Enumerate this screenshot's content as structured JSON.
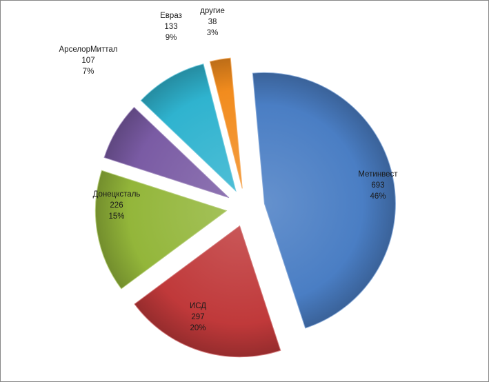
{
  "chart_data": {
    "type": "pie",
    "title": "",
    "exploded": true,
    "slices": [
      {
        "label": "Метинвест",
        "value": 693,
        "percent": "46%",
        "color": "#4a7ec4"
      },
      {
        "label": "ИСД",
        "value": 297,
        "percent": "20%",
        "color": "#c0393a"
      },
      {
        "label": "Донецксталь",
        "value": 226,
        "percent": "15%",
        "color": "#93b63a"
      },
      {
        "label": "АрселорМиттал",
        "value": 107,
        "percent": "7%",
        "color": "#7a5ba4"
      },
      {
        "label": "Евраз",
        "value": 133,
        "percent": "9%",
        "color": "#2fb3cf"
      },
      {
        "label": "другие",
        "value": 38,
        "percent": "3%",
        "color": "#f28c1e"
      }
    ]
  }
}
